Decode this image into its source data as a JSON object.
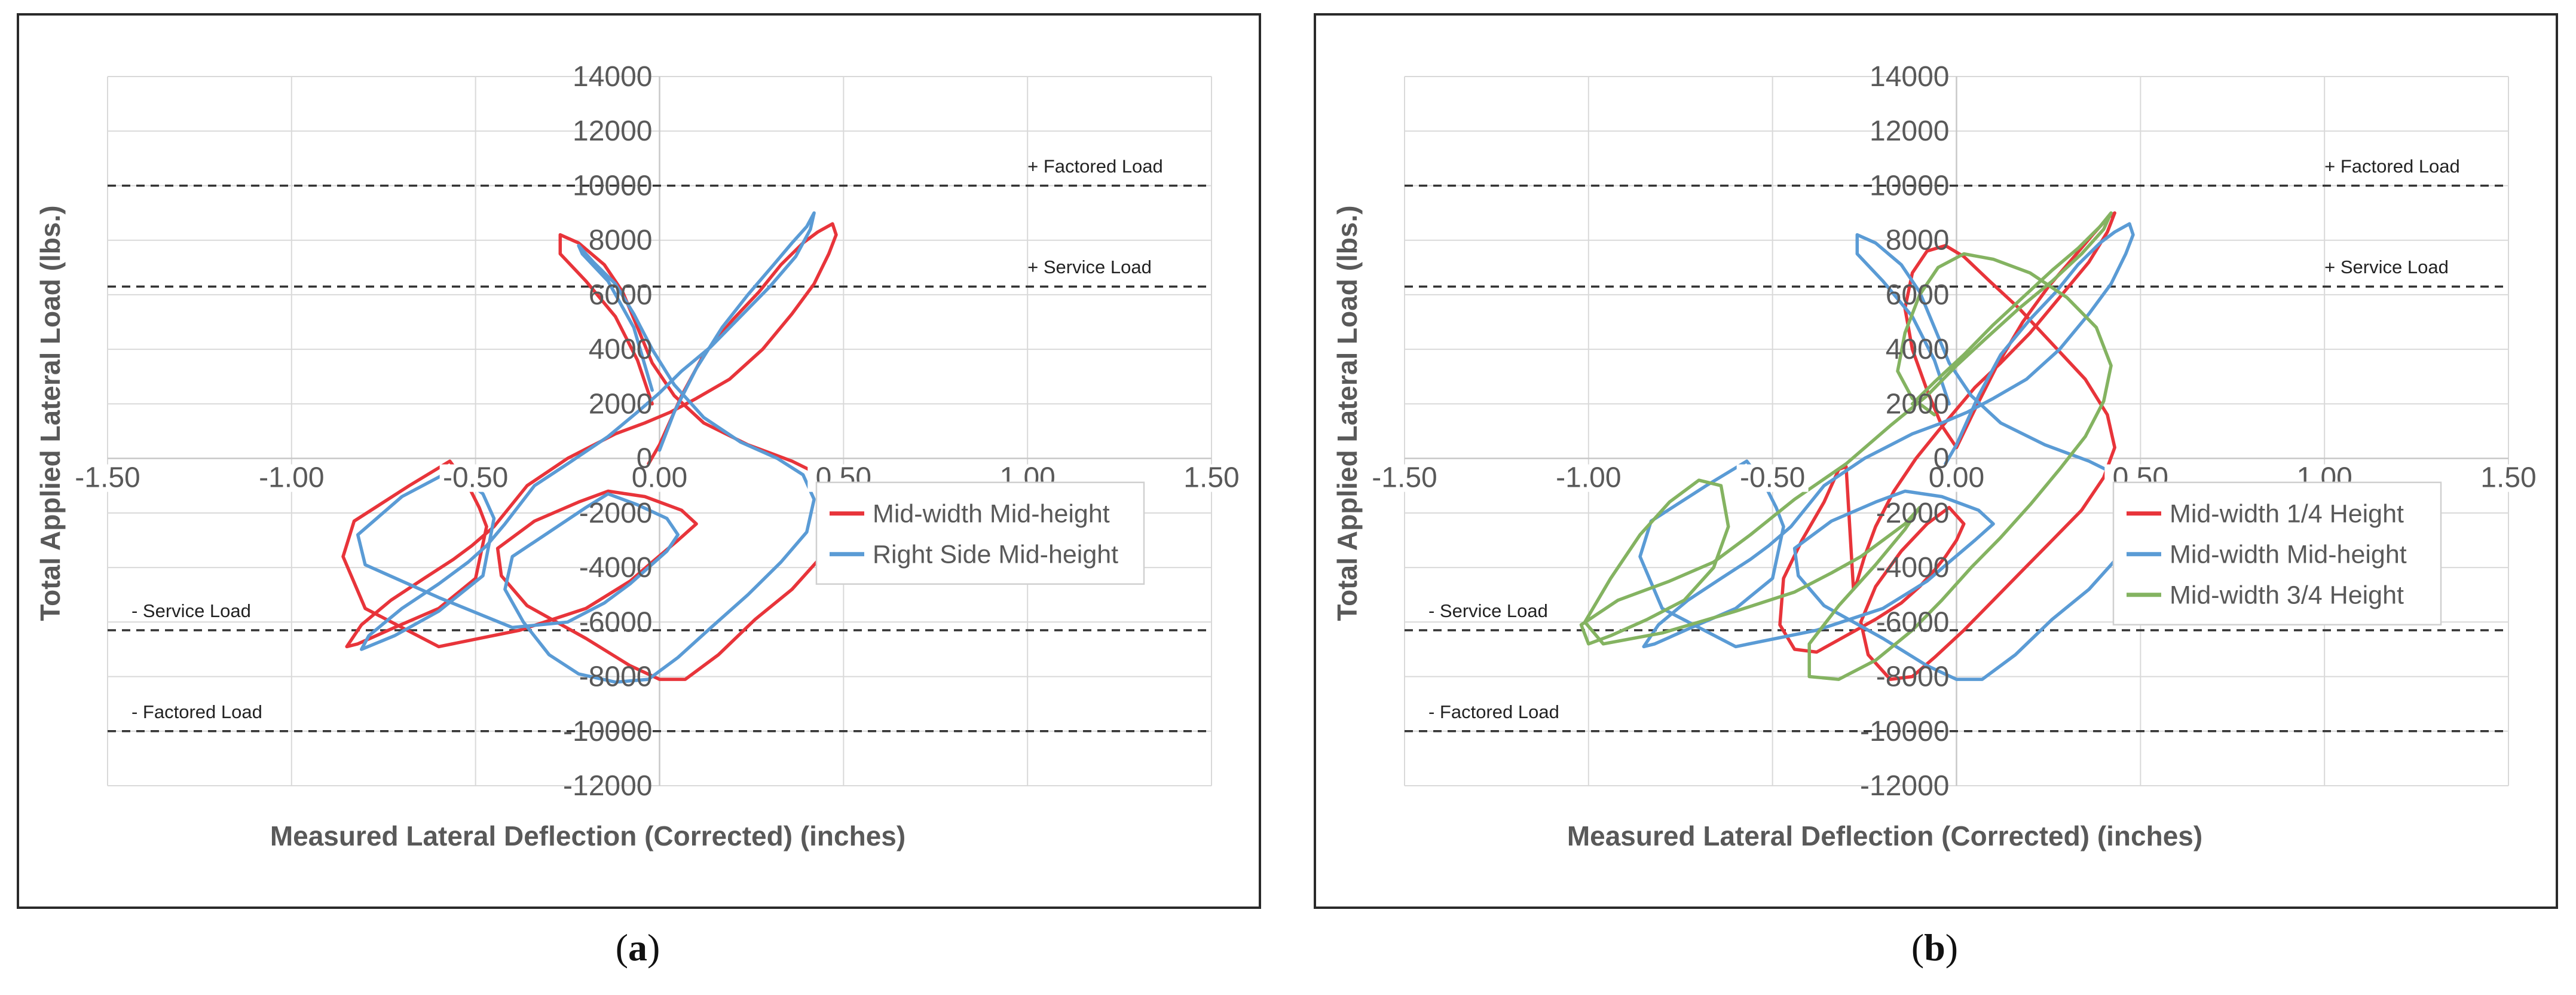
{
  "captions": {
    "a_letter": "a",
    "b_letter": "b",
    "a_open": "(",
    "a_close": ")",
    "b_open": "(",
    "b_close": ")"
  },
  "colors": {
    "red": "#e8343a",
    "blue": "#5a9bd5",
    "green": "#84b361",
    "grid": "#d9d9d9",
    "reference": "#333333"
  },
  "chart_data": [
    {
      "id": "a",
      "type": "line",
      "title": "",
      "xlabel": "Measured Lateral Deflection (Corrected) (inches)",
      "ylabel": "Total Applied Lateral Load (lbs.)",
      "xlim": [
        -1.5,
        1.5
      ],
      "ylim": [
        -12000,
        14000
      ],
      "x_ticks": [
        -1.5,
        -1.0,
        -0.5,
        0.0,
        0.5,
        1.0,
        1.5
      ],
      "x_tick_labels": [
        "-1.50",
        "-1.00",
        "-0.50",
        "0.00",
        "0.50",
        "1.00",
        "1.50"
      ],
      "y_ticks": [
        -12000,
        -10000,
        -8000,
        -6000,
        -4000,
        -2000,
        0,
        2000,
        4000,
        6000,
        8000,
        10000,
        12000,
        14000
      ],
      "y_tick_labels": [
        "-12000",
        "-10000",
        "-8000",
        "-6000",
        "-4000",
        "-2000",
        "0",
        "2000",
        "4000",
        "6000",
        "8000",
        "10000",
        "12000",
        "14000"
      ],
      "grid": true,
      "legend_position": "right-middle",
      "reference_lines": [
        {
          "label": "+ Factored Load",
          "y": 10000,
          "label_side": "right"
        },
        {
          "label": "+ Service Load",
          "y": 6300,
          "label_side": "right"
        },
        {
          "label": "- Service Load",
          "y": -6300,
          "label_side": "left"
        },
        {
          "label": "- Factored Load",
          "y": -10000,
          "label_side": "left"
        }
      ],
      "series": [
        {
          "name": "Mid-width Mid-height",
          "color": "#e8343a",
          "x": [
            -0.03,
            0.0,
            0.06,
            0.12,
            0.2,
            0.27,
            0.33,
            0.39,
            0.43,
            0.47,
            0.48,
            0.46,
            0.42,
            0.36,
            0.28,
            0.19,
            0.1,
            0.03,
            -0.04,
            -0.12,
            -0.25,
            -0.36,
            -0.45,
            -0.51,
            -0.56,
            -0.64,
            -0.73,
            -0.81,
            -0.85,
            -0.82,
            -0.72,
            -0.6,
            -0.5,
            -0.47,
            -0.49,
            -0.52,
            -0.57,
            -0.68,
            -0.83,
            -0.86,
            -0.8,
            -0.6,
            -0.38,
            -0.2,
            -0.08,
            -0.02,
            0.05,
            0.1,
            0.06,
            -0.04,
            -0.14,
            -0.22,
            -0.34,
            -0.44,
            -0.43,
            -0.36,
            -0.2,
            -0.08,
            0.0,
            0.07,
            0.16,
            0.26,
            0.36,
            0.44,
            0.49,
            0.49,
            0.45,
            0.36,
            0.24,
            0.12,
            0.04,
            -0.02,
            -0.06,
            -0.1,
            -0.15,
            -0.22,
            -0.27,
            -0.27,
            -0.2,
            -0.12,
            -0.06,
            -0.02
          ],
          "y": [
            -200,
            500,
            2300,
            3800,
            5100,
            6100,
            7100,
            7900,
            8300,
            8600,
            8200,
            7500,
            6400,
            5300,
            4000,
            2900,
            2200,
            1700,
            1300,
            900,
            0,
            -1000,
            -2500,
            -3200,
            -3700,
            -4400,
            -5200,
            -6100,
            -6900,
            -6800,
            -6200,
            -5500,
            -4400,
            -2500,
            -1800,
            -1000,
            -100,
            -1000,
            -2300,
            -3600,
            -5500,
            -6900,
            -6300,
            -5500,
            -4500,
            -3800,
            -3000,
            -2400,
            -1900,
            -1400,
            -1200,
            -1600,
            -2300,
            -3300,
            -4300,
            -5400,
            -6600,
            -7600,
            -8100,
            -8100,
            -7200,
            -5900,
            -4800,
            -3600,
            -2500,
            -1400,
            -700,
            -100,
            500,
            1300,
            2300,
            3500,
            4800,
            6100,
            7100,
            7900,
            8200,
            7500,
            6500,
            5200,
            3600,
            2000
          ]
        },
        {
          "name": "Right Side Mid-height",
          "color": "#5a9bd5",
          "x": [
            0.0,
            0.04,
            0.1,
            0.17,
            0.24,
            0.31,
            0.36,
            0.4,
            0.42,
            0.41,
            0.37,
            0.3,
            0.22,
            0.14,
            0.06,
            0.0,
            -0.06,
            -0.14,
            -0.25,
            -0.34,
            -0.42,
            -0.47,
            -0.52,
            -0.6,
            -0.7,
            -0.79,
            -0.81,
            -0.72,
            -0.6,
            -0.48,
            -0.45,
            -0.48,
            -0.56,
            -0.7,
            -0.82,
            -0.8,
            -0.6,
            -0.4,
            -0.25,
            -0.15,
            -0.08,
            -0.03,
            0.02,
            0.05,
            0.02,
            -0.06,
            -0.14,
            -0.2,
            -0.3,
            -0.4,
            -0.42,
            -0.37,
            -0.3,
            -0.22,
            -0.12,
            -0.03,
            0.05,
            0.14,
            0.24,
            0.33,
            0.4,
            0.42,
            0.39,
            0.32,
            0.22,
            0.12,
            0.04,
            -0.02,
            -0.07,
            -0.12,
            -0.18,
            -0.22,
            -0.21,
            -0.14,
            -0.07,
            -0.02
          ],
          "y": [
            300,
            1700,
            3300,
            4800,
            6000,
            7100,
            7900,
            8500,
            9000,
            8400,
            7400,
            6300,
            5200,
            4100,
            3200,
            2400,
            1700,
            800,
            -200,
            -1000,
            -2400,
            -3200,
            -3800,
            -4600,
            -5500,
            -6500,
            -7000,
            -6500,
            -5600,
            -4300,
            -2200,
            -1300,
            -400,
            -1400,
            -2800,
            -3900,
            -5100,
            -6200,
            -6000,
            -5300,
            -4600,
            -4000,
            -3400,
            -2800,
            -2200,
            -1700,
            -1300,
            -1800,
            -2700,
            -3600,
            -4800,
            -6000,
            -7200,
            -7900,
            -8200,
            -8100,
            -7300,
            -6200,
            -5000,
            -3800,
            -2700,
            -1500,
            -600,
            0,
            600,
            1500,
            2700,
            4000,
            5300,
            6400,
            7200,
            7800,
            7500,
            6500,
            4800,
            2500
          ]
        }
      ]
    },
    {
      "id": "b",
      "type": "line",
      "title": "",
      "xlabel": "Measured Lateral Deflection (Corrected) (inches)",
      "ylabel": "Total Applied Lateral Load (lbs.)",
      "xlim": [
        -1.5,
        1.5
      ],
      "ylim": [
        -12000,
        14000
      ],
      "x_ticks": [
        -1.5,
        -1.0,
        -0.5,
        0.0,
        0.5,
        1.0,
        1.5
      ],
      "x_tick_labels": [
        "-1.50",
        "-1.00",
        "-0.50",
        "0.00",
        "0.50",
        "1.00",
        "1.50"
      ],
      "y_ticks": [
        -12000,
        -10000,
        -8000,
        -6000,
        -4000,
        -2000,
        0,
        2000,
        4000,
        6000,
        8000,
        10000,
        12000,
        14000
      ],
      "y_tick_labels": [
        "-12000",
        "-10000",
        "-8000",
        "-6000",
        "-4000",
        "-2000",
        "0",
        "2000",
        "4000",
        "6000",
        "8000",
        "10000",
        "12000",
        "14000"
      ],
      "grid": true,
      "legend_position": "right-middle",
      "reference_lines": [
        {
          "label": "+ Factored Load",
          "y": 10000,
          "label_side": "right"
        },
        {
          "label": "+ Service Load",
          "y": 6300,
          "label_side": "right"
        },
        {
          "label": "- Service Load",
          "y": -6300,
          "label_side": "left"
        },
        {
          "label": "- Factored Load",
          "y": -10000,
          "label_side": "left"
        }
      ],
      "series": [
        {
          "name": "Mid-width 1/4 Height",
          "color": "#e8343a",
          "x": [
            0.0,
            0.05,
            0.11,
            0.18,
            0.25,
            0.32,
            0.37,
            0.41,
            0.43,
            0.41,
            0.36,
            0.28,
            0.2,
            0.12,
            0.05,
            0.0,
            -0.05,
            -0.11,
            -0.17,
            -0.22,
            -0.25,
            -0.27,
            -0.28,
            -0.3,
            -0.32,
            -0.36,
            -0.42,
            -0.47,
            -0.48,
            -0.44,
            -0.38,
            -0.3,
            -0.22,
            -0.15,
            -0.1,
            -0.06,
            -0.03,
            0.0,
            0.02,
            -0.02,
            -0.08,
            -0.15,
            -0.22,
            -0.26,
            -0.24,
            -0.18,
            -0.12,
            -0.06,
            0.02,
            0.1,
            0.18,
            0.26,
            0.34,
            0.4,
            0.43,
            0.41,
            0.35,
            0.26,
            0.17,
            0.09,
            0.02,
            -0.03,
            -0.08,
            -0.12,
            -0.14,
            -0.12,
            -0.08,
            -0.04,
            0.0
          ],
          "y": [
            400,
            1800,
            3400,
            5000,
            6300,
            7400,
            8200,
            8800,
            9000,
            8300,
            7200,
            5900,
            4600,
            3500,
            2600,
            1800,
            1000,
            0,
            -1200,
            -2500,
            -3600,
            -4500,
            -4800,
            -300,
            -400,
            -1600,
            -3000,
            -4400,
            -6100,
            -7000,
            -7100,
            -6500,
            -5900,
            -5300,
            -4700,
            -4100,
            -3600,
            -3000,
            -2400,
            -1800,
            -2400,
            -3400,
            -4700,
            -6000,
            -7200,
            -8100,
            -8000,
            -7300,
            -6300,
            -5200,
            -4100,
            -3000,
            -1900,
            -700,
            400,
            1600,
            2900,
            4200,
            5500,
            6500,
            7400,
            7800,
            7600,
            6800,
            5500,
            4000,
            2500,
            1200,
            400
          ]
        },
        {
          "name": "Mid-width Mid-height",
          "color": "#5a9bd5",
          "x": [
            -0.03,
            0.0,
            0.06,
            0.12,
            0.2,
            0.27,
            0.33,
            0.39,
            0.43,
            0.47,
            0.48,
            0.46,
            0.42,
            0.36,
            0.28,
            0.19,
            0.1,
            0.03,
            -0.04,
            -0.12,
            -0.25,
            -0.36,
            -0.45,
            -0.51,
            -0.56,
            -0.64,
            -0.73,
            -0.81,
            -0.85,
            -0.82,
            -0.72,
            -0.6,
            -0.5,
            -0.47,
            -0.49,
            -0.52,
            -0.57,
            -0.68,
            -0.83,
            -0.86,
            -0.8,
            -0.6,
            -0.38,
            -0.2,
            -0.08,
            -0.02,
            0.05,
            0.1,
            0.06,
            -0.04,
            -0.14,
            -0.22,
            -0.34,
            -0.44,
            -0.43,
            -0.36,
            -0.2,
            -0.08,
            0.0,
            0.07,
            0.16,
            0.26,
            0.36,
            0.44,
            0.49,
            0.49,
            0.45,
            0.36,
            0.24,
            0.12,
            0.04,
            -0.02,
            -0.06,
            -0.1,
            -0.15,
            -0.22,
            -0.27,
            -0.27,
            -0.2,
            -0.12,
            -0.06,
            -0.02
          ],
          "y": [
            -200,
            500,
            2300,
            3800,
            5100,
            6100,
            7100,
            7900,
            8300,
            8600,
            8200,
            7500,
            6400,
            5300,
            4000,
            2900,
            2200,
            1700,
            1300,
            900,
            0,
            -1000,
            -2500,
            -3200,
            -3700,
            -4400,
            -5200,
            -6100,
            -6900,
            -6800,
            -6200,
            -5500,
            -4400,
            -2500,
            -1800,
            -1000,
            -100,
            -1000,
            -2300,
            -3600,
            -5500,
            -6900,
            -6300,
            -5500,
            -4500,
            -3800,
            -3000,
            -2400,
            -1900,
            -1400,
            -1200,
            -1600,
            -2300,
            -3300,
            -4300,
            -5400,
            -6600,
            -7600,
            -8100,
            -8100,
            -7200,
            -5900,
            -4800,
            -3600,
            -2500,
            -1400,
            -700,
            -100,
            500,
            1300,
            2300,
            3500,
            4800,
            6100,
            7100,
            7900,
            8200,
            7500,
            6500,
            5200,
            3600,
            2000
          ]
        },
        {
          "name": "Mid-width 3/4 Height",
          "color": "#84b361",
          "x": [
            -0.12,
            -0.06,
            0.02,
            0.1,
            0.18,
            0.26,
            0.33,
            0.39,
            0.42,
            0.4,
            0.34,
            0.26,
            0.17,
            0.08,
            0.0,
            -0.08,
            -0.18,
            -0.3,
            -0.44,
            -0.56,
            -0.66,
            -0.78,
            -0.92,
            -1.02,
            -1.0,
            -0.94,
            -0.84,
            -0.74,
            -0.66,
            -0.62,
            -0.64,
            -0.7,
            -0.78,
            -0.86,
            -0.94,
            -1.01,
            -0.96,
            -0.8,
            -0.6,
            -0.44,
            -0.34,
            -0.26,
            -0.2,
            -0.14,
            -0.1,
            -0.14,
            -0.22,
            -0.32,
            -0.4,
            -0.4,
            -0.32,
            -0.22,
            -0.12,
            -0.04,
            0.04,
            0.12,
            0.2,
            0.28,
            0.35,
            0.4,
            0.42,
            0.38,
            0.3,
            0.2,
            0.1,
            0.02,
            -0.05,
            -0.1,
            -0.14,
            -0.16,
            -0.12,
            -0.06
          ],
          "y": [
            2000,
            2800,
            3800,
            4900,
            5900,
            6900,
            7700,
            8500,
            9000,
            8400,
            7500,
            6500,
            5500,
            4400,
            3400,
            2300,
            1200,
            -200,
            -1500,
            -2800,
            -3800,
            -4500,
            -5200,
            -6100,
            -6800,
            -6500,
            -5900,
            -5200,
            -4000,
            -2500,
            -1000,
            -800,
            -1600,
            -2800,
            -4400,
            -6000,
            -6800,
            -6400,
            -5600,
            -4900,
            -4200,
            -3600,
            -3000,
            -2400,
            -1800,
            -2600,
            -3900,
            -5400,
            -6800,
            -8000,
            -8100,
            -7400,
            -6300,
            -5200,
            -4000,
            -2900,
            -1700,
            -400,
            800,
            2100,
            3400,
            4800,
            5900,
            6800,
            7300,
            7500,
            7000,
            6000,
            4600,
            3200,
            2200,
            1600
          ]
        }
      ]
    }
  ]
}
